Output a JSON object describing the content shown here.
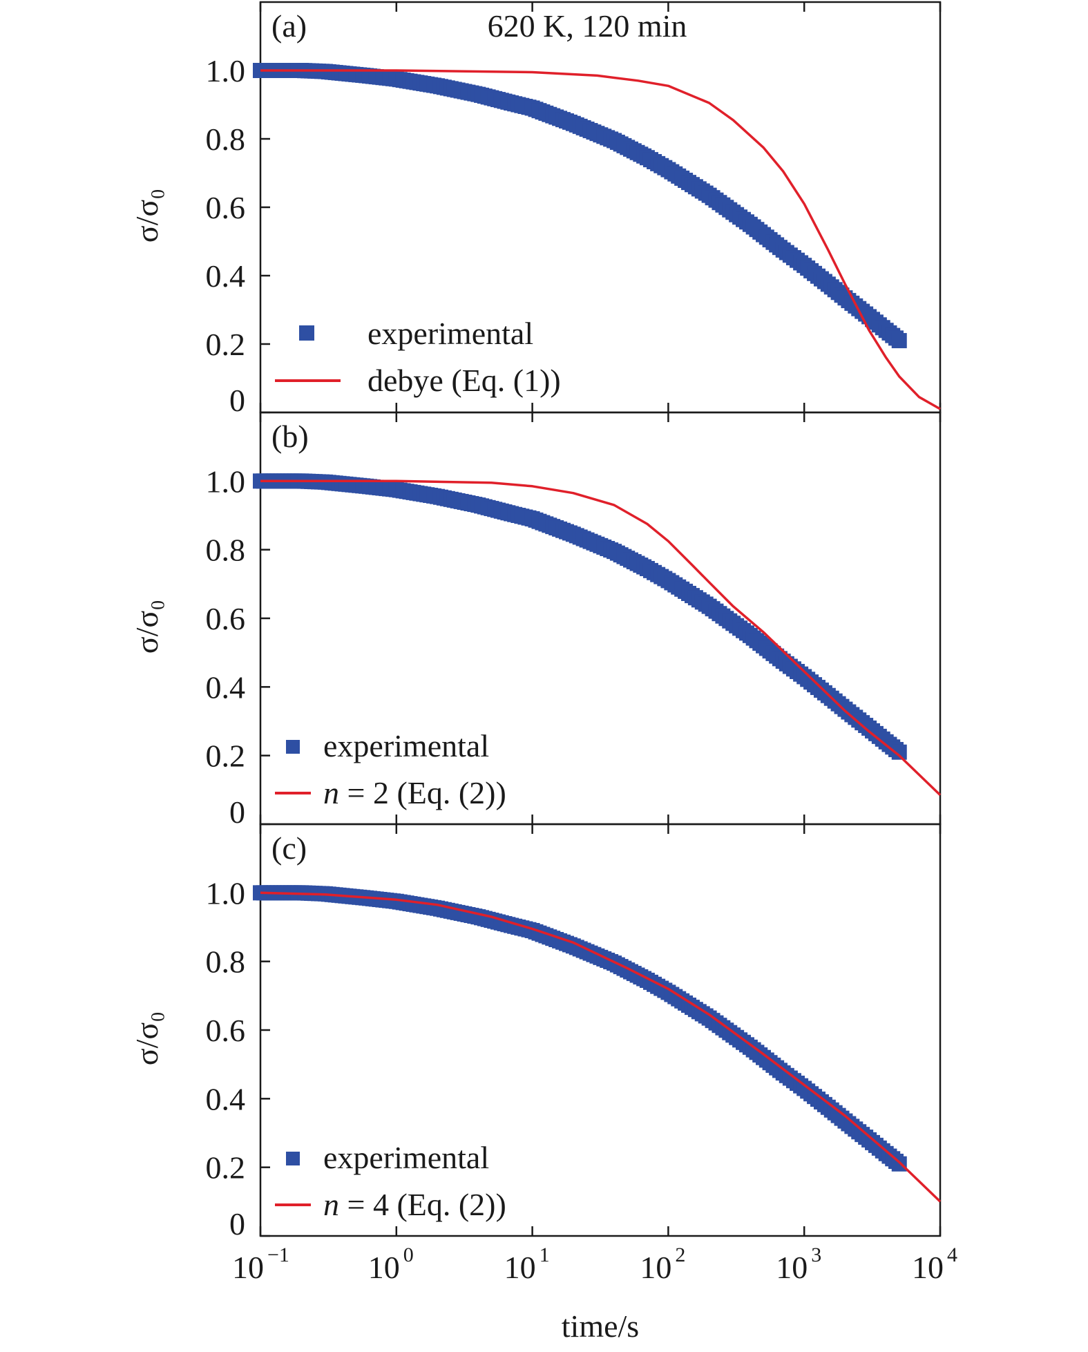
{
  "chart_data": [
    {
      "type": "scatter",
      "panel_label": "(a)",
      "title": "620 K, 120 min",
      "ylabel": "σ/σ₀",
      "xlabel": "",
      "xscale": "log",
      "xlim": [
        0.1,
        10000
      ],
      "ylim": [
        0,
        1.2
      ],
      "legend_position": "bottom-left",
      "series": [
        {
          "name": "experimental",
          "kind": "markers",
          "color": "#2e4fa3",
          "x": [
            0.1,
            0.2,
            0.3,
            0.4,
            0.6,
            1,
            2,
            4,
            7,
            10,
            20,
            40,
            70,
            100,
            200,
            400,
            700,
            1000,
            1500,
            2000,
            3000,
            4000,
            5000
          ],
          "y": [
            1.0,
            1.0,
            0.997,
            0.992,
            0.985,
            0.975,
            0.955,
            0.93,
            0.905,
            0.89,
            0.845,
            0.795,
            0.745,
            0.71,
            0.635,
            0.55,
            0.475,
            0.43,
            0.375,
            0.335,
            0.28,
            0.24,
            0.21
          ]
        },
        {
          "name": "debye (Eq. (1))",
          "kind": "line",
          "color": "#e0202a",
          "x": [
            0.1,
            1,
            10,
            30,
            60,
            100,
            200,
            300,
            500,
            700,
            1000,
            1500,
            2000,
            3000,
            4000,
            5000,
            7000,
            10000
          ],
          "y": [
            1.0,
            1.0,
            0.995,
            0.985,
            0.97,
            0.955,
            0.905,
            0.855,
            0.775,
            0.705,
            0.61,
            0.475,
            0.375,
            0.24,
            0.16,
            0.105,
            0.045,
            0.01
          ]
        }
      ]
    },
    {
      "type": "scatter",
      "panel_label": "(b)",
      "title": "",
      "ylabel": "σ/σ₀",
      "xlabel": "",
      "xscale": "log",
      "xlim": [
        0.1,
        10000
      ],
      "ylim": [
        0,
        1.2
      ],
      "legend_position": "bottom-left",
      "series": [
        {
          "name": "experimental",
          "kind": "markers",
          "color": "#2e4fa3",
          "x": [
            0.1,
            0.2,
            0.3,
            0.4,
            0.6,
            1,
            2,
            4,
            7,
            10,
            20,
            40,
            70,
            100,
            200,
            400,
            700,
            1000,
            1500,
            2000,
            3000,
            4000,
            5000
          ],
          "y": [
            1.0,
            1.0,
            0.997,
            0.992,
            0.985,
            0.975,
            0.955,
            0.93,
            0.905,
            0.89,
            0.845,
            0.795,
            0.745,
            0.71,
            0.635,
            0.55,
            0.475,
            0.43,
            0.375,
            0.335,
            0.28,
            0.24,
            0.21
          ]
        },
        {
          "name": "n = 2 (Eq. (2))",
          "kind": "line",
          "color": "#e0202a",
          "x": [
            0.1,
            1,
            5,
            10,
            20,
            40,
            70,
            100,
            150,
            200,
            300,
            500,
            1000,
            2000,
            3000,
            5000,
            10000
          ],
          "y": [
            1.0,
            1.0,
            0.995,
            0.985,
            0.965,
            0.93,
            0.875,
            0.825,
            0.755,
            0.705,
            0.635,
            0.56,
            0.445,
            0.33,
            0.27,
            0.2,
            0.085
          ]
        }
      ]
    },
    {
      "type": "scatter",
      "panel_label": "(c)",
      "title": "",
      "ylabel": "σ/σ₀",
      "xlabel": "time/s",
      "xscale": "log",
      "xlim": [
        0.1,
        10000
      ],
      "ylim": [
        0,
        1.2
      ],
      "x_tick_labels": [
        "10",
        "10",
        "10",
        "10",
        "10",
        "10"
      ],
      "x_tick_exponents": [
        "−1",
        "0",
        "1",
        "2",
        "3",
        "4"
      ],
      "legend_position": "bottom-left",
      "series": [
        {
          "name": "experimental",
          "kind": "markers",
          "color": "#2e4fa3",
          "x": [
            0.1,
            0.2,
            0.3,
            0.4,
            0.6,
            1,
            2,
            4,
            7,
            10,
            20,
            40,
            70,
            100,
            200,
            400,
            700,
            1000,
            1500,
            2000,
            3000,
            4000,
            5000
          ],
          "y": [
            1.0,
            1.0,
            0.997,
            0.992,
            0.985,
            0.975,
            0.955,
            0.93,
            0.905,
            0.89,
            0.845,
            0.795,
            0.745,
            0.71,
            0.635,
            0.55,
            0.475,
            0.43,
            0.375,
            0.335,
            0.28,
            0.24,
            0.21
          ]
        },
        {
          "name": "n = 4 (Eq. (2))",
          "kind": "line",
          "color": "#e0202a",
          "x": [
            0.1,
            0.3,
            1,
            2,
            5,
            10,
            20,
            50,
            100,
            200,
            500,
            1000,
            2000,
            5000,
            10000
          ],
          "y": [
            1.0,
            0.995,
            0.98,
            0.965,
            0.93,
            0.895,
            0.855,
            0.78,
            0.72,
            0.645,
            0.53,
            0.44,
            0.35,
            0.215,
            0.1
          ]
        }
      ]
    }
  ],
  "y_tick_labels": [
    "0",
    "0.2",
    "0.4",
    "0.6",
    "0.8",
    "1.0"
  ],
  "legend_parts": {
    "n_symbol": "n",
    "n2_rest": " = 2 (Eq. (2))",
    "n4_rest": " = 4 (Eq. (2))"
  }
}
